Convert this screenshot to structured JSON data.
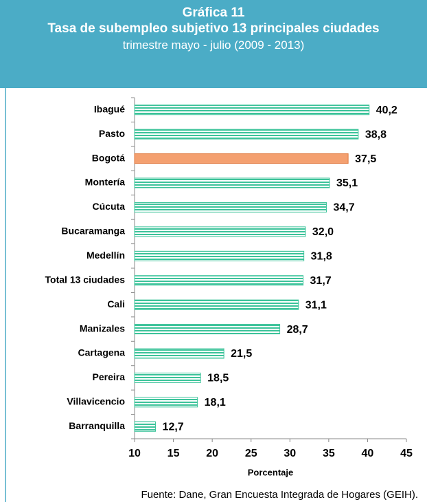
{
  "chart_data": {
    "type": "bar",
    "orientation": "horizontal",
    "label": "Gráfica 11",
    "title": "Tasa de subempleo subjetivo 13 principales ciudades",
    "subtitle": "trimestre mayo - julio (2009 - 2013)",
    "categories": [
      "Ibagué",
      "Pasto",
      "Bogotá",
      "Montería",
      "Cúcuta",
      "Bucaramanga",
      "Medellín",
      "Total 13 ciudades",
      "Cali",
      "Manizales",
      "Cartagena",
      "Pereira",
      "Villavicencio",
      "Barranquilla"
    ],
    "values": [
      40.2,
      38.8,
      37.5,
      35.1,
      34.7,
      32.0,
      31.8,
      31.7,
      31.1,
      28.7,
      21.5,
      18.5,
      18.1,
      12.7
    ],
    "value_labels": [
      "40,2",
      "38,8",
      "37,5",
      "35,1",
      "34,7",
      "32,0",
      "31,8",
      "31,7",
      "31,1",
      "28,7",
      "21,5",
      "18,5",
      "18,1",
      "12,7"
    ],
    "colors": [
      "#3cc39a",
      "#3cc39a",
      "#f4a070",
      "#3cc39a",
      "#3cc39a",
      "#3cc39a",
      "#3cc39a",
      "#3cc39a",
      "#3cc39a",
      "#3cc39a",
      "#3cc39a",
      "#3cc39a",
      "#3cc39a",
      "#3cc39a"
    ],
    "xlim": [
      10,
      45
    ],
    "xticks": [
      10,
      15,
      20,
      25,
      30,
      35,
      40,
      45
    ],
    "xlabel": "Porcentaje",
    "source": "Fuente: Dane, Gran Encuesta Integrada de Hogares (GEIH)."
  }
}
